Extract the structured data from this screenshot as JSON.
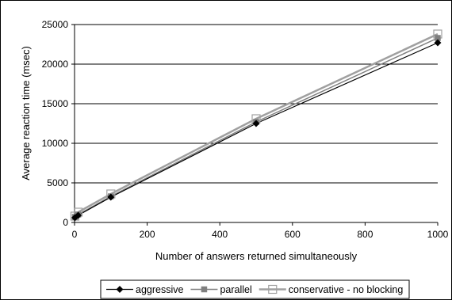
{
  "chart_data": {
    "type": "line",
    "title": "",
    "xlabel": "Number of answers returned simultaneously",
    "ylabel": "Average reaction time (msec)",
    "xlim": [
      0,
      1000
    ],
    "ylim": [
      0,
      25000
    ],
    "x_ticks": [
      "0",
      "200",
      "400",
      "600",
      "800",
      "1000"
    ],
    "y_ticks": [
      "0",
      "5000",
      "10000",
      "15000",
      "20000",
      "25000"
    ],
    "grid": "horizontal",
    "legend_position": "bottom",
    "x": [
      1,
      10,
      100,
      500,
      1000
    ],
    "series": [
      {
        "name": "aggressive",
        "values": [
          600,
          900,
          3200,
          12500,
          22700
        ],
        "color": "#000000",
        "marker": "diamond"
      },
      {
        "name": "parallel",
        "values": [
          700,
          1000,
          3300,
          12700,
          23300
        ],
        "color": "#808080",
        "marker": "square"
      },
      {
        "name": "conservative - no blocking",
        "values": [
          800,
          1300,
          3600,
          13100,
          23800
        ],
        "color": "#a0a0a0",
        "marker": "open-square"
      }
    ]
  }
}
